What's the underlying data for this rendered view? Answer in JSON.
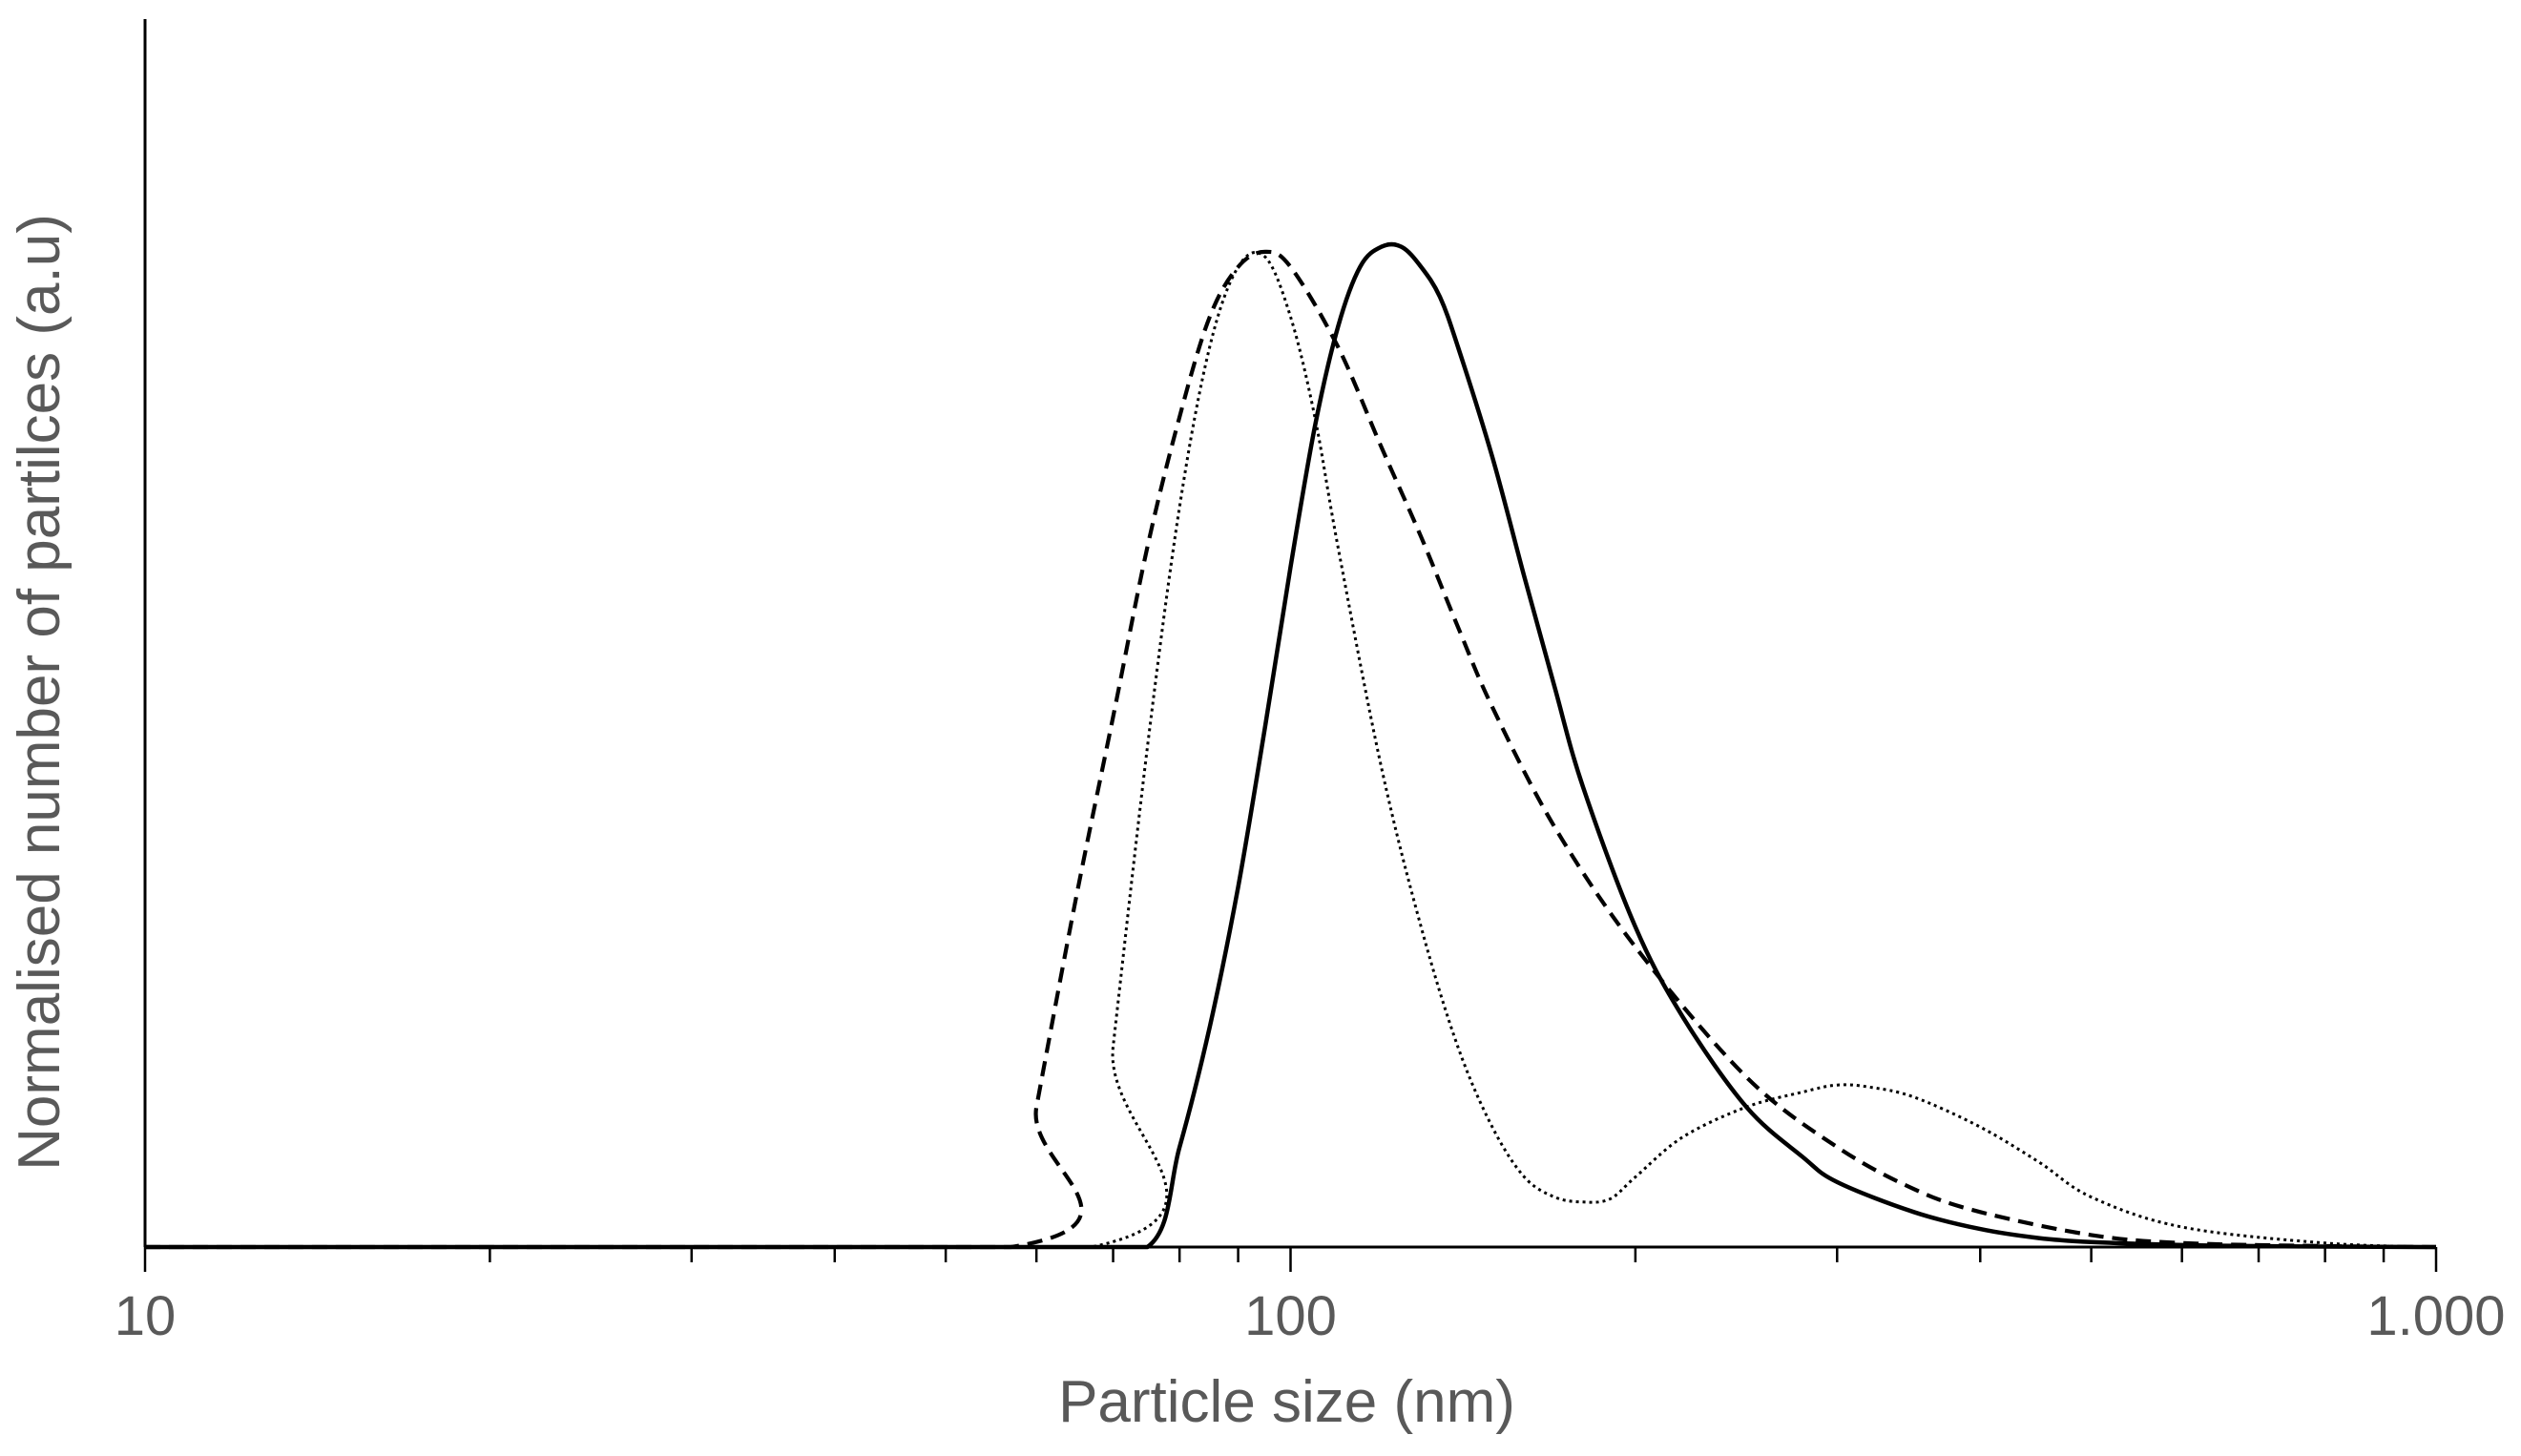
{
  "chart_data": {
    "type": "line",
    "title": "",
    "xlabel": "Particle size (nm)",
    "ylabel": "Normalised number of partilces (a.u)",
    "xscale": "log",
    "xlim": [
      10,
      1000
    ],
    "ylim": [
      0,
      1.18
    ],
    "xticks": [
      {
        "value": 10,
        "label": "10"
      },
      {
        "value": 100,
        "label": "100"
      },
      {
        "value": 1000,
        "label": "1.000"
      }
    ],
    "minor_xticks": [
      20,
      30,
      40,
      50,
      60,
      70,
      80,
      90,
      200,
      300,
      400,
      500,
      600,
      700,
      800,
      900
    ],
    "grid": false,
    "legend": "none",
    "series": [
      {
        "style": "solid",
        "color": "#000000",
        "x": [
          10,
          60,
          75,
          80,
          85,
          90,
          95,
          100,
          105,
          110,
          115,
          120,
          125,
          130,
          135,
          140,
          150,
          160,
          170,
          180,
          200,
          220,
          250,
          280,
          300,
          350,
          400,
          450,
          500,
          600,
          700,
          800,
          1000
        ],
        "y": [
          0,
          0,
          0,
          0.1,
          0.22,
          0.36,
          0.52,
          0.68,
          0.82,
          0.92,
          0.98,
          1.0,
          1.0,
          0.98,
          0.95,
          0.9,
          0.79,
          0.67,
          0.56,
          0.46,
          0.32,
          0.23,
          0.14,
          0.09,
          0.065,
          0.035,
          0.018,
          0.009,
          0.005,
          0.002,
          0.001,
          0.0005,
          0
        ]
      },
      {
        "style": "dashed",
        "color": "#000000",
        "x": [
          10,
          57,
          60,
          65,
          70,
          75,
          80,
          85,
          90,
          95,
          100,
          110,
          120,
          130,
          140,
          150,
          170,
          200,
          250,
          300,
          350,
          400,
          500,
          600,
          800,
          1000
        ],
        "y": [
          0,
          0,
          0.14,
          0.35,
          0.53,
          0.7,
          0.83,
          0.93,
          0.98,
          0.995,
          0.98,
          0.9,
          0.8,
          0.71,
          0.62,
          0.54,
          0.42,
          0.3,
          0.17,
          0.1,
          0.058,
          0.035,
          0.012,
          0.004,
          0.001,
          0
        ]
      },
      {
        "style": "dotted",
        "color": "#000000",
        "x": [
          10,
          67,
          70,
          75,
          80,
          85,
          90,
          95,
          100,
          105,
          110,
          120,
          130,
          140,
          150,
          160,
          170,
          180,
          190,
          200,
          220,
          250,
          280,
          300,
          320,
          350,
          400,
          450,
          500,
          600,
          800,
          1000
        ],
        "y": [
          0,
          0,
          0.2,
          0.5,
          0.74,
          0.9,
          0.98,
          0.99,
          0.93,
          0.83,
          0.7,
          0.48,
          0.32,
          0.2,
          0.12,
          0.07,
          0.05,
          0.045,
          0.048,
          0.07,
          0.11,
          0.14,
          0.155,
          0.162,
          0.16,
          0.15,
          0.12,
          0.085,
          0.05,
          0.02,
          0.004,
          0
        ]
      }
    ]
  }
}
